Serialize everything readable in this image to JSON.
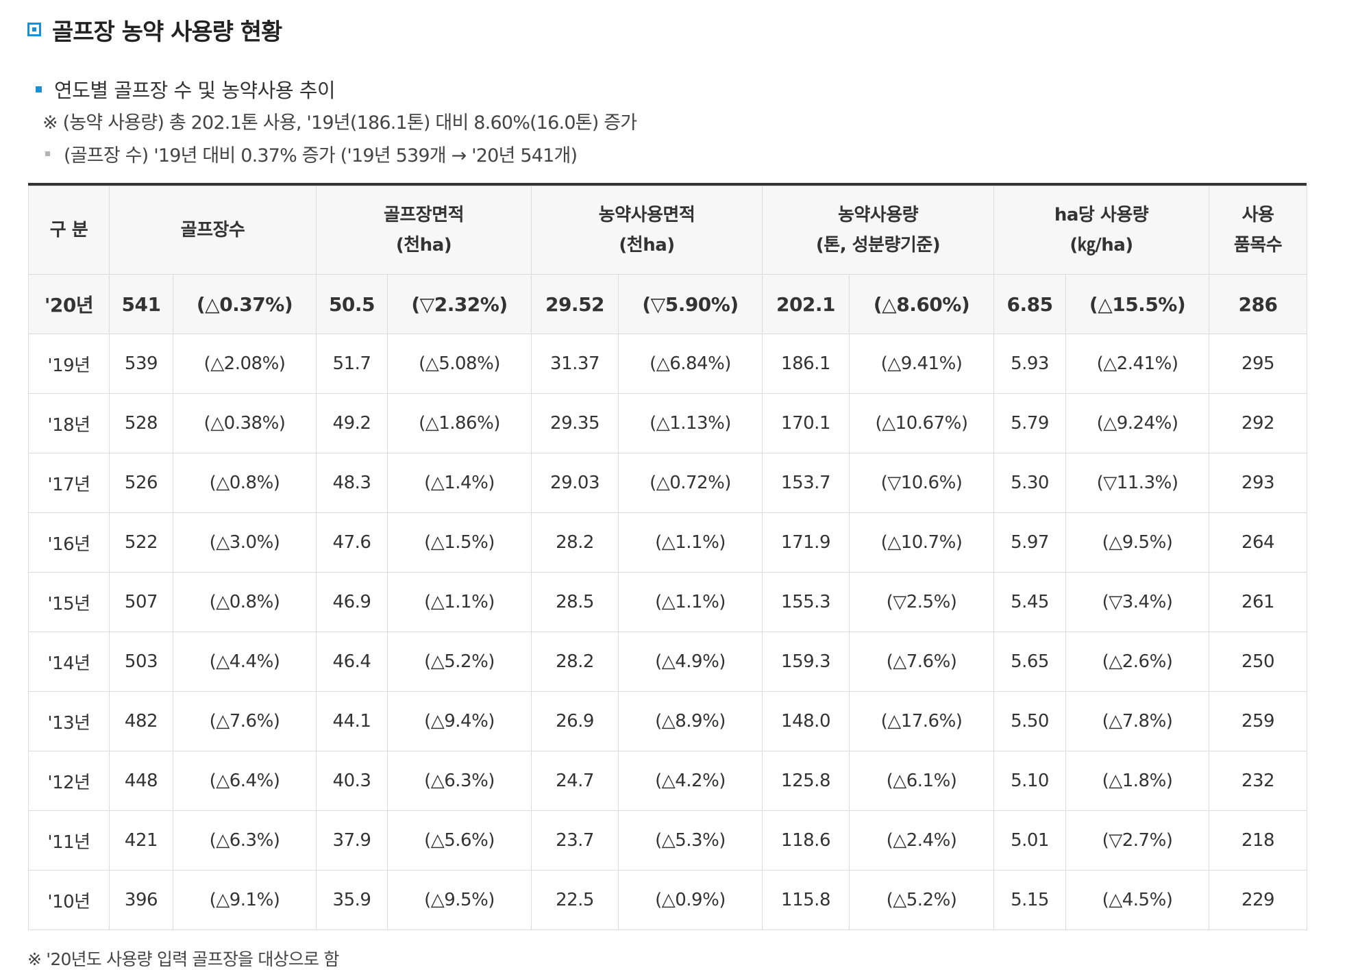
{
  "page": {
    "title": "골프장 농약 사용량 현황",
    "section_title": "연도별 골프장 수 및 농약사용 추이",
    "note": "※ (농약 사용량) 총 202.1톤 사용, '19년(186.1톤) 대비 8.60%(16.0톤) 증가",
    "sub_note": "(골프장 수) '19년 대비 0.37% 증가 ('19년 539개 → '20년 541개)",
    "footnote": "※ '20년도 사용량 입력 골프장을 대상으로 함"
  },
  "colors": {
    "accent": "#1a8fd6",
    "header_bg": "#f7f7f7",
    "border": "#dcdcdc"
  },
  "icons": {
    "title_icon": "square-bullet-icon",
    "section_bullet": "blue-square-bullet-icon",
    "sub_bullet": "gray-square-bullet-icon"
  },
  "table": {
    "headers": {
      "category": "구 분",
      "golf_count": "골프장수",
      "golf_area_1": "골프장면적",
      "golf_area_2": "(천ha)",
      "pest_area_1": "농약사용면적",
      "pest_area_2": "(천ha)",
      "pest_amount_1": "농약사용량",
      "pest_amount_2": "(톤, 성분량기준)",
      "per_ha_1": "ha당 사용량",
      "per_ha_2": "(㎏/ha)",
      "items_1": "사용",
      "items_2": "품목수"
    },
    "rows": [
      [
        "'20년",
        "541",
        "(△0.37%)",
        "50.5",
        "(▽2.32%)",
        "29.52",
        "(▽5.90%)",
        "202.1",
        "(△8.60%)",
        "6.85",
        "(△15.5%)",
        "286"
      ],
      [
        "'19년",
        "539",
        "(△2.08%)",
        "51.7",
        "(△5.08%)",
        "31.37",
        "(△6.84%)",
        "186.1",
        "(△9.41%)",
        "5.93",
        "(△2.41%)",
        "295"
      ],
      [
        "'18년",
        "528",
        "(△0.38%)",
        "49.2",
        "(△1.86%)",
        "29.35",
        "(△1.13%)",
        "170.1",
        "(△10.67%)",
        "5.79",
        "(△9.24%)",
        "292"
      ],
      [
        "'17년",
        "526",
        "(△0.8%)",
        "48.3",
        "(△1.4%)",
        "29.03",
        "(△0.72%)",
        "153.7",
        "(▽10.6%)",
        "5.30",
        "(▽11.3%)",
        "293"
      ],
      [
        "'16년",
        "522",
        "(△3.0%)",
        "47.6",
        "(△1.5%)",
        "28.2",
        "(△1.1%)",
        "171.9",
        "(△10.7%)",
        "5.97",
        "(△9.5%)",
        "264"
      ],
      [
        "'15년",
        "507",
        "(△0.8%)",
        "46.9",
        "(△1.1%)",
        "28.5",
        "(△1.1%)",
        "155.3",
        "(▽2.5%)",
        "5.45",
        "(▽3.4%)",
        "261"
      ],
      [
        "'14년",
        "503",
        "(△4.4%)",
        "46.4",
        "(△5.2%)",
        "28.2",
        "(△4.9%)",
        "159.3",
        "(△7.6%)",
        "5.65",
        "(△2.6%)",
        "250"
      ],
      [
        "'13년",
        "482",
        "(△7.6%)",
        "44.1",
        "(△9.4%)",
        "26.9",
        "(△8.9%)",
        "148.0",
        "(△17.6%)",
        "5.50",
        "(△7.8%)",
        "259"
      ],
      [
        "'12년",
        "448",
        "(△6.4%)",
        "40.3",
        "(△6.3%)",
        "24.7",
        "(△4.2%)",
        "125.8",
        "(△6.1%)",
        "5.10",
        "(△1.8%)",
        "232"
      ],
      [
        "'11년",
        "421",
        "(△6.3%)",
        "37.9",
        "(△5.6%)",
        "23.7",
        "(△5.3%)",
        "118.6",
        "(△2.4%)",
        "5.01",
        "(▽2.7%)",
        "218"
      ],
      [
        "'10년",
        "396",
        "(△9.1%)",
        "35.9",
        "(△9.5%)",
        "22.5",
        "(△0.9%)",
        "115.8",
        "(△5.2%)",
        "5.15",
        "(△4.5%)",
        "229"
      ]
    ]
  }
}
